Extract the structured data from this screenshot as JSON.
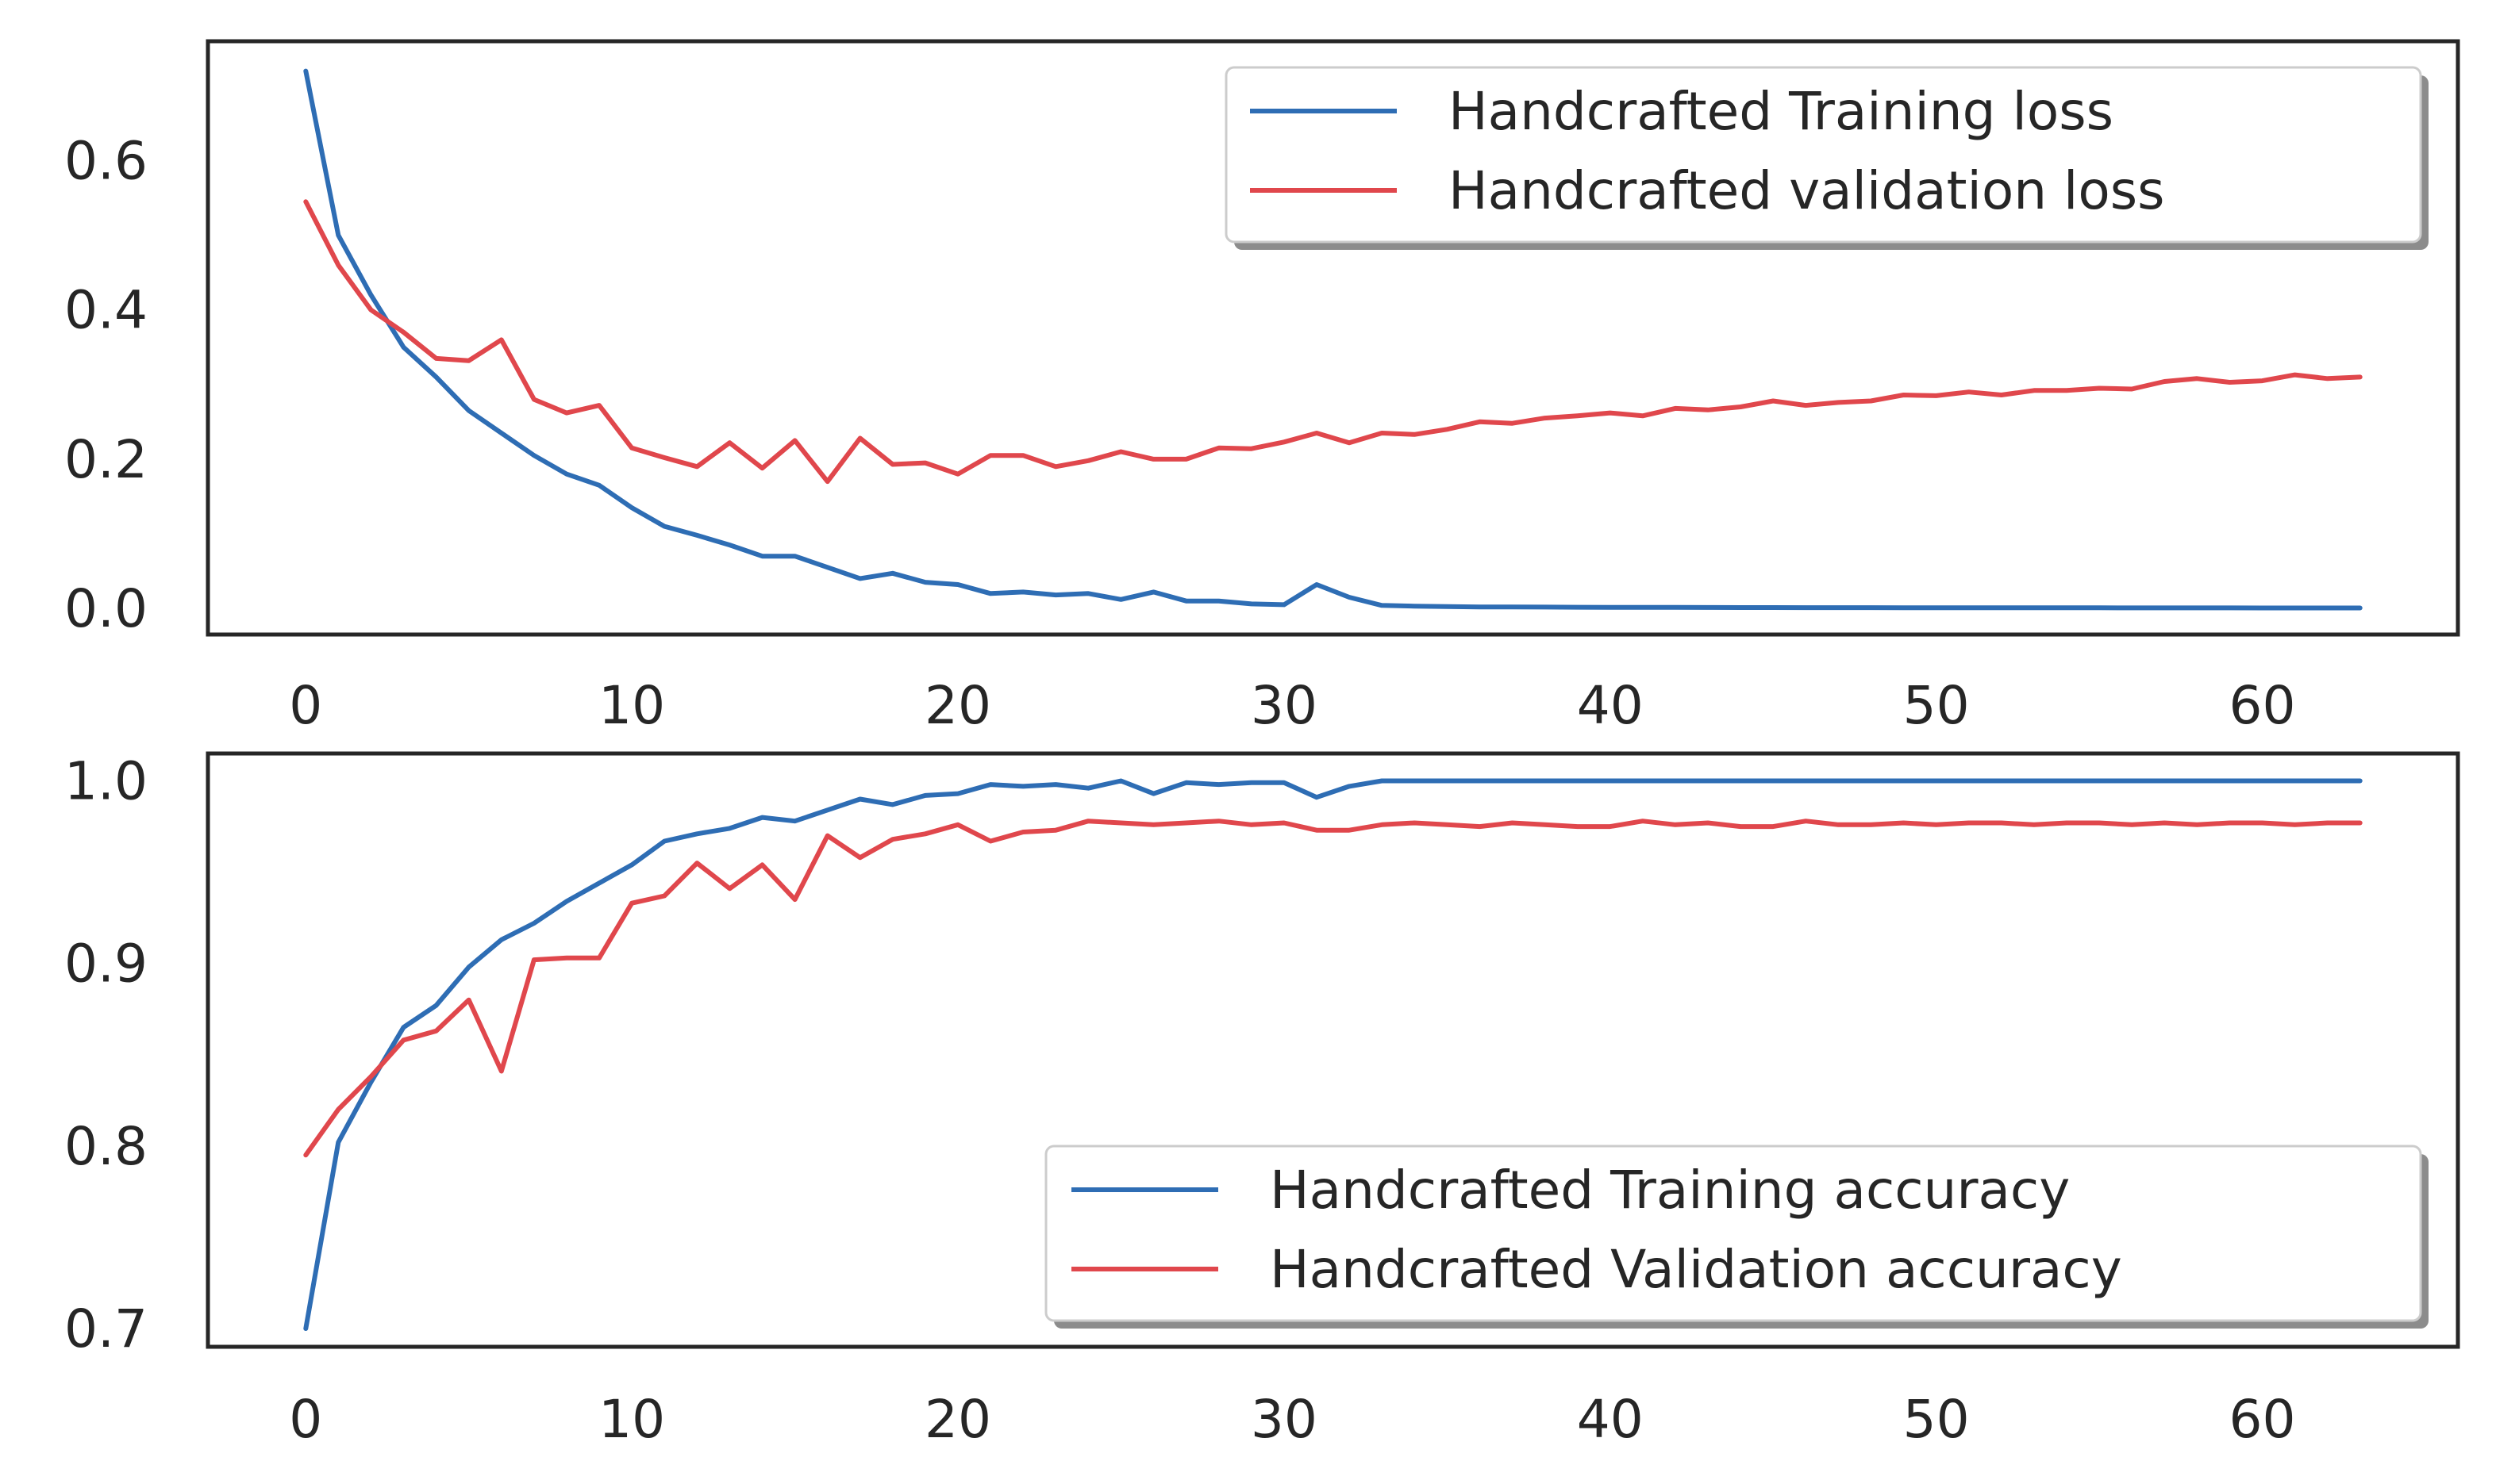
{
  "chart_data": [
    {
      "type": "line",
      "xlim": [
        -3,
        66
      ],
      "ylim": [
        -0.035,
        0.76
      ],
      "xticks": [
        0,
        10,
        20,
        30,
        40,
        50,
        60
      ],
      "yticks": [
        0.0,
        0.2,
        0.4,
        0.6
      ],
      "ytick_labels": [
        "0.0",
        "0.2",
        "0.4",
        "0.6"
      ],
      "legend_position": "top-right",
      "grid": false,
      "series": [
        {
          "name": "Handcrafted Training loss",
          "color": "#2e6db4",
          "values": [
            0.72,
            0.5,
            0.42,
            0.35,
            0.31,
            0.265,
            0.235,
            0.205,
            0.18,
            0.165,
            0.135,
            0.11,
            0.098,
            0.085,
            0.07,
            0.07,
            0.055,
            0.04,
            0.047,
            0.035,
            0.032,
            0.02,
            0.022,
            0.018,
            0.02,
            0.012,
            0.022,
            0.01,
            0.01,
            0.006,
            0.005,
            0.032,
            0.015,
            0.004,
            0.003,
            0.0025,
            0.002,
            0.002,
            0.0018,
            0.0016,
            0.0015,
            0.0014,
            0.0013,
            0.0012,
            0.0011,
            0.0011,
            0.001,
            0.001,
            0.001,
            0.0009,
            0.0009,
            0.0009,
            0.0008,
            0.0008,
            0.0008,
            0.0008,
            0.0007,
            0.0007,
            0.0007,
            0.0007,
            0.0006,
            0.0006,
            0.0006,
            0.0006
          ]
        },
        {
          "name": "Handcrafted validation loss",
          "color": "#e0474c",
          "values": [
            0.545,
            0.46,
            0.4,
            0.37,
            0.335,
            0.332,
            0.36,
            0.28,
            0.262,
            0.272,
            0.215,
            0.202,
            0.19,
            0.222,
            0.188,
            0.225,
            0.17,
            0.228,
            0.193,
            0.195,
            0.18,
            0.205,
            0.205,
            0.19,
            0.198,
            0.21,
            0.2,
            0.2,
            0.215,
            0.214,
            0.223,
            0.235,
            0.222,
            0.235,
            0.233,
            0.24,
            0.25,
            0.248,
            0.255,
            0.258,
            0.262,
            0.258,
            0.268,
            0.266,
            0.27,
            0.278,
            0.272,
            0.276,
            0.278,
            0.286,
            0.285,
            0.29,
            0.286,
            0.292,
            0.292,
            0.295,
            0.294,
            0.304,
            0.308,
            0.303,
            0.305,
            0.313,
            0.308,
            0.31
          ]
        }
      ]
    },
    {
      "type": "line",
      "xlim": [
        -3,
        66
      ],
      "ylim": [
        0.69,
        1.015
      ],
      "xticks": [
        0,
        10,
        20,
        30,
        40,
        50,
        60
      ],
      "yticks": [
        0.7,
        0.8,
        0.9,
        1.0
      ],
      "ytick_labels": [
        "0.7",
        "0.8",
        "0.9",
        "1.0"
      ],
      "legend_position": "bottom-right",
      "grid": false,
      "series": [
        {
          "name": "Handcrafted Training accuracy",
          "color": "#2e6db4",
          "values": [
            0.7,
            0.802,
            0.835,
            0.865,
            0.877,
            0.898,
            0.913,
            0.922,
            0.934,
            0.944,
            0.954,
            0.967,
            0.971,
            0.974,
            0.98,
            0.978,
            0.984,
            0.99,
            0.987,
            0.992,
            0.993,
            0.998,
            0.997,
            0.998,
            0.996,
            1.0,
            0.993,
            0.999,
            0.998,
            0.999,
            0.999,
            0.991,
            0.997,
            1.0,
            1.0,
            1.0,
            1.0,
            1.0,
            1.0,
            1.0,
            1.0,
            1.0,
            1.0,
            1.0,
            1.0,
            1.0,
            1.0,
            1.0,
            1.0,
            1.0,
            1.0,
            1.0,
            1.0,
            1.0,
            1.0,
            1.0,
            1.0,
            1.0,
            1.0,
            1.0,
            1.0,
            1.0,
            1.0,
            1.0
          ]
        },
        {
          "name": "Handcrafted Validation accuracy",
          "color": "#e0474c",
          "values": [
            0.795,
            0.82,
            0.838,
            0.858,
            0.863,
            0.88,
            0.841,
            0.902,
            0.903,
            0.903,
            0.933,
            0.937,
            0.955,
            0.941,
            0.954,
            0.935,
            0.97,
            0.958,
            0.968,
            0.971,
            0.976,
            0.967,
            0.972,
            0.973,
            0.978,
            0.977,
            0.976,
            0.977,
            0.978,
            0.976,
            0.977,
            0.973,
            0.973,
            0.976,
            0.977,
            0.976,
            0.975,
            0.977,
            0.976,
            0.975,
            0.975,
            0.978,
            0.976,
            0.977,
            0.975,
            0.975,
            0.978,
            0.976,
            0.976,
            0.977,
            0.976,
            0.977,
            0.977,
            0.976,
            0.977,
            0.977,
            0.976,
            0.977,
            0.976,
            0.977,
            0.977,
            0.976,
            0.977,
            0.977
          ]
        }
      ]
    }
  ]
}
